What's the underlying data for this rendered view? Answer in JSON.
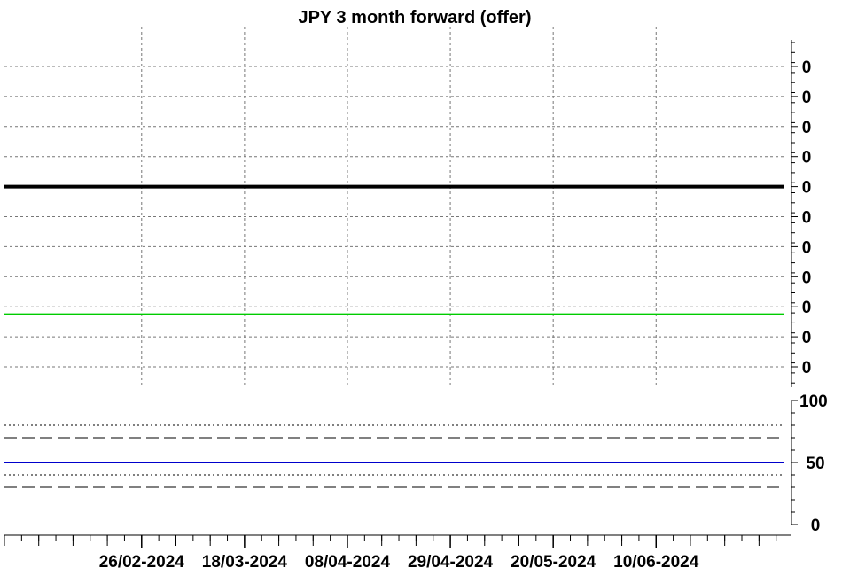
{
  "chart_data": [
    {
      "type": "line",
      "title": "JPY 3 month forward (offer)",
      "xlabel": "",
      "ylabel": "",
      "x_ticks": [
        "26/02-2024",
        "18/03-2024",
        "08/04-2024",
        "29/04-2024",
        "20/05-2024",
        "10/06-2024"
      ],
      "x_range": [
        "2024-01-29",
        "2024-07-06"
      ],
      "y_tick_labels": [
        "0",
        "0",
        "0",
        "0",
        "0",
        "0",
        "0",
        "0",
        "0",
        "0",
        "0"
      ],
      "ylim": [
        0,
        11
      ],
      "grid": true,
      "series": [
        {
          "color": "#000000",
          "values": [
            6,
            6
          ]
        },
        {
          "color": "#00cc00",
          "values": [
            1.75,
            1.75
          ]
        }
      ]
    },
    {
      "type": "line",
      "xlabel": "",
      "ylabel": "",
      "y_tick_labels": [
        "100",
        "50",
        "0"
      ],
      "ylim": [
        0,
        100
      ],
      "grid": true,
      "reference_lines": [
        80,
        70,
        40,
        30
      ],
      "series": [
        {
          "color": "#0000cc",
          "values": [
            50,
            50
          ]
        }
      ]
    }
  ]
}
